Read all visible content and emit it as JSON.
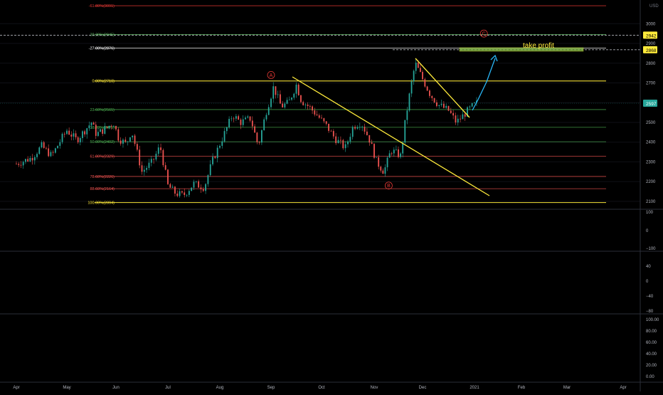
{
  "currency": "USD",
  "chart_data": {
    "type": "candlestick",
    "title": "",
    "x_ticks": [
      "Apr",
      "May",
      "Jun",
      "Jul",
      "Aug",
      "Sep",
      "Oct",
      "Nov",
      "Dec",
      "2021",
      "Feb",
      "Mar",
      "Apr"
    ],
    "y_ticks": [
      "2100",
      "2200",
      "2300",
      "2400",
      "2500",
      "2600",
      "2700",
      "2800",
      "2900",
      "3000"
    ],
    "ylim": [
      2060,
      3120
    ],
    "last_price": "2597",
    "price_tags": [
      {
        "label": "2942",
        "value": 2942,
        "color": "#ffeb3b"
      },
      {
        "label": "2868",
        "value": 2868,
        "color": "#ffeb3b"
      }
    ],
    "fib_levels": [
      {
        "label": "-61.80%(3091)",
        "value": 3091,
        "color": "#e53935"
      },
      {
        "label": "-38.20%(2945)",
        "value": 2945,
        "color": "#66bb6a"
      },
      {
        "label": "-27.00%(2876)",
        "value": 2876,
        "color": "#ffffff"
      },
      {
        "label": "0.00%(2710)",
        "value": 2710,
        "color": "#ffeb3b"
      },
      {
        "label": "23.60%(2565)",
        "value": 2565,
        "color": "#4caf50"
      },
      {
        "label": "38.20%(2475)",
        "value": 2475,
        "color": "#4caf50"
      },
      {
        "label": "50.00%(2402)",
        "value": 2402,
        "color": "#4caf50"
      },
      {
        "label": "61.80%(2329)",
        "value": 2329,
        "color": "#ef5350"
      },
      {
        "label": "78.60%(2226)",
        "value": 2226,
        "color": "#ef5350"
      },
      {
        "label": "88.60%(2164)",
        "value": 2164,
        "color": "#ef5350"
      },
      {
        "label": "100.00%(2094)",
        "value": 2094,
        "color": "#ffeb3b"
      }
    ],
    "wave_labels": [
      {
        "label": "A",
        "month": 5.0,
        "value": 2740
      },
      {
        "label": "B",
        "month": 7.3,
        "value": 2180
      },
      {
        "label": "C",
        "month": 9.2,
        "value": 2950
      }
    ],
    "annotation": "take profit",
    "series_points": [
      [
        0,
        2290
      ],
      [
        0.3,
        2320
      ],
      [
        0.5,
        2380
      ],
      [
        0.7,
        2330
      ],
      [
        0.9,
        2420
      ],
      [
        1.0,
        2460
      ],
      [
        1.2,
        2410
      ],
      [
        1.4,
        2470
      ],
      [
        1.5,
        2500
      ],
      [
        1.6,
        2440
      ],
      [
        1.8,
        2470
      ],
      [
        1.95,
        2500
      ],
      [
        2.05,
        2420
      ],
      [
        2.2,
        2390
      ],
      [
        2.3,
        2460
      ],
      [
        2.5,
        2250
      ],
      [
        2.7,
        2300
      ],
      [
        2.85,
        2380
      ],
      [
        3.0,
        2180
      ],
      [
        3.15,
        2140
      ],
      [
        3.3,
        2130
      ],
      [
        3.5,
        2190
      ],
      [
        3.7,
        2170
      ],
      [
        3.85,
        2300
      ],
      [
        4.05,
        2420
      ],
      [
        4.25,
        2540
      ],
      [
        4.4,
        2500
      ],
      [
        4.6,
        2520
      ],
      [
        4.75,
        2380
      ],
      [
        4.9,
        2550
      ],
      [
        5.05,
        2680
      ],
      [
        5.2,
        2580
      ],
      [
        5.35,
        2600
      ],
      [
        5.5,
        2690
      ],
      [
        5.6,
        2610
      ],
      [
        5.75,
        2580
      ],
      [
        5.9,
        2540
      ],
      [
        6.1,
        2480
      ],
      [
        6.25,
        2420
      ],
      [
        6.45,
        2370
      ],
      [
        6.6,
        2480
      ],
      [
        6.75,
        2500
      ],
      [
        6.9,
        2420
      ],
      [
        7.05,
        2300
      ],
      [
        7.2,
        2250
      ],
      [
        7.35,
        2360
      ],
      [
        7.55,
        2330
      ],
      [
        7.65,
        2520
      ],
      [
        7.75,
        2670
      ],
      [
        7.85,
        2800
      ],
      [
        8.0,
        2720
      ],
      [
        8.15,
        2640
      ],
      [
        8.3,
        2590
      ],
      [
        8.5,
        2560
      ],
      [
        8.65,
        2500
      ],
      [
        8.8,
        2540
      ],
      [
        8.95,
        2580
      ],
      [
        9.05,
        2597
      ]
    ],
    "panels": [
      {
        "ticks": [
          "100",
          "0",
          "−100"
        ]
      },
      {
        "ticks": [
          "40",
          "0",
          "−40",
          "−80"
        ]
      },
      {
        "ticks": [
          "100.00",
          "80.00",
          "60.00",
          "40.00",
          "20.00",
          "0.00"
        ]
      }
    ]
  }
}
